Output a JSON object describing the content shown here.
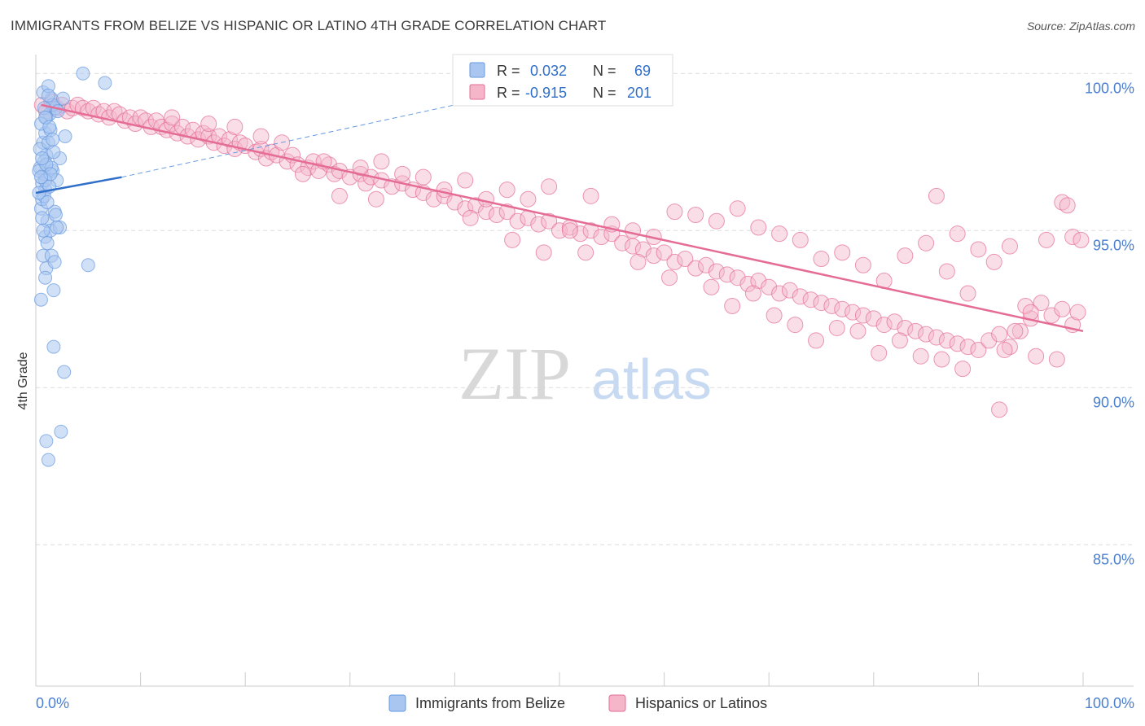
{
  "title": "IMMIGRANTS FROM BELIZE VS HISPANIC OR LATINO 4TH GRADE CORRELATION CHART",
  "source": "Source: ZipAtlas.com",
  "watermark": {
    "zip": "ZIP",
    "atlas": "atlas"
  },
  "chart_data": {
    "type": "scatter",
    "ylabel": "4th Grade",
    "xlim": [
      0,
      100
    ],
    "ylim": [
      80.5,
      100.5
    ],
    "x_tick_labels": [
      {
        "value": 0,
        "label": "0.0%"
      },
      {
        "value": 100,
        "label": "100.0%"
      }
    ],
    "y_tick_labels": [
      {
        "value": 100,
        "label": "100.0%"
      },
      {
        "value": 95,
        "label": "95.0%"
      },
      {
        "value": 90,
        "label": "90.0%"
      },
      {
        "value": 85,
        "label": "85.0%"
      }
    ],
    "grid": true,
    "legend_position": "top-center",
    "series": [
      {
        "name": "Immigrants from Belize",
        "color": "#6699e0",
        "fill": "#a9c6f0",
        "stat_R": "0.032",
        "stat_N": "69",
        "trend": {
          "x0": 0,
          "y0": 96.2,
          "x1": 8.2,
          "y1": 96.7,
          "dashed_to_x": 40,
          "dashed_to_y": 99.0
        },
        "points": [
          [
            0.6,
            96.5
          ],
          [
            0.9,
            96.3
          ],
          [
            0.5,
            95.7
          ],
          [
            1.8,
            95.6
          ],
          [
            0.8,
            96.8
          ],
          [
            1.0,
            97.4
          ],
          [
            0.7,
            97.8
          ],
          [
            0.4,
            97.0
          ],
          [
            0.9,
            98.1
          ],
          [
            1.3,
            98.7
          ],
          [
            1.5,
            99.2
          ],
          [
            0.7,
            99.4
          ],
          [
            1.2,
            99.6
          ],
          [
            1.9,
            98.9
          ],
          [
            0.8,
            97.2
          ],
          [
            0.3,
            96.9
          ],
          [
            0.6,
            96.0
          ],
          [
            1.1,
            95.3
          ],
          [
            0.9,
            94.8
          ],
          [
            1.4,
            95.0
          ],
          [
            2.3,
            95.1
          ],
          [
            0.7,
            94.2
          ],
          [
            1.5,
            94.2
          ],
          [
            1.0,
            93.8
          ],
          [
            1.8,
            94.0
          ],
          [
            0.9,
            93.5
          ],
          [
            1.7,
            93.1
          ],
          [
            0.5,
            92.8
          ],
          [
            5.0,
            93.9
          ],
          [
            1.7,
            91.3
          ],
          [
            2.7,
            90.5
          ],
          [
            1.0,
            88.3
          ],
          [
            2.4,
            88.6
          ],
          [
            1.2,
            87.7
          ],
          [
            4.5,
            100.0
          ],
          [
            6.6,
            99.7
          ],
          [
            1.6,
            99.0
          ],
          [
            2.8,
            98.0
          ],
          [
            2.3,
            97.3
          ],
          [
            1.4,
            98.2
          ],
          [
            1.0,
            98.6
          ],
          [
            0.8,
            96.1
          ],
          [
            1.6,
            96.9
          ],
          [
            0.6,
            95.4
          ],
          [
            2.0,
            96.6
          ],
          [
            0.4,
            97.6
          ],
          [
            1.2,
            97.8
          ],
          [
            1.5,
            97.0
          ],
          [
            0.9,
            96.6
          ],
          [
            1.1,
            95.9
          ],
          [
            0.3,
            96.2
          ],
          [
            1.7,
            97.5
          ],
          [
            0.5,
            98.4
          ],
          [
            2.1,
            98.8
          ],
          [
            1.3,
            96.4
          ],
          [
            0.7,
            95.0
          ],
          [
            1.9,
            95.5
          ],
          [
            1.0,
            97.1
          ],
          [
            0.6,
            97.3
          ],
          [
            1.4,
            96.8
          ],
          [
            2.6,
            99.2
          ],
          [
            0.8,
            98.9
          ],
          [
            1.2,
            99.3
          ],
          [
            0.5,
            96.7
          ],
          [
            1.6,
            97.9
          ],
          [
            0.9,
            98.6
          ],
          [
            1.1,
            94.6
          ],
          [
            2.0,
            95.1
          ],
          [
            1.3,
            98.3
          ]
        ]
      },
      {
        "name": "Hispanics or Latinos",
        "color": "#e46c96",
        "fill": "#f5b6c9",
        "stat_R": "-0.915",
        "stat_N": "201",
        "trend": {
          "x0": 0.5,
          "y0": 99.0,
          "x1": 100,
          "y1": 91.8
        },
        "points": [
          [
            0.6,
            99.0
          ],
          [
            1.0,
            98.8
          ],
          [
            1.5,
            99.1
          ],
          [
            2.0,
            98.9
          ],
          [
            2.5,
            99.0
          ],
          [
            3.0,
            98.8
          ],
          [
            3.5,
            98.9
          ],
          [
            4.0,
            99.0
          ],
          [
            4.5,
            98.9
          ],
          [
            5.0,
            98.8
          ],
          [
            5.5,
            98.9
          ],
          [
            6.0,
            98.7
          ],
          [
            6.5,
            98.8
          ],
          [
            7.0,
            98.6
          ],
          [
            7.5,
            98.8
          ],
          [
            8.0,
            98.7
          ],
          [
            8.5,
            98.5
          ],
          [
            9.0,
            98.6
          ],
          [
            9.5,
            98.4
          ],
          [
            10.0,
            98.6
          ],
          [
            10.5,
            98.5
          ],
          [
            11.0,
            98.3
          ],
          [
            11.5,
            98.5
          ],
          [
            12.0,
            98.3
          ],
          [
            12.5,
            98.2
          ],
          [
            13.0,
            98.4
          ],
          [
            13.5,
            98.1
          ],
          [
            14.0,
            98.3
          ],
          [
            14.5,
            98.0
          ],
          [
            15.0,
            98.2
          ],
          [
            15.5,
            97.9
          ],
          [
            16.0,
            98.1
          ],
          [
            16.5,
            98.0
          ],
          [
            17.0,
            97.8
          ],
          [
            17.5,
            98.0
          ],
          [
            18.0,
            97.7
          ],
          [
            18.5,
            97.9
          ],
          [
            19.0,
            97.6
          ],
          [
            19.5,
            97.8
          ],
          [
            20.0,
            97.7
          ],
          [
            21.0,
            97.5
          ],
          [
            21.5,
            97.6
          ],
          [
            22.0,
            97.3
          ],
          [
            22.5,
            97.5
          ],
          [
            23.0,
            97.4
          ],
          [
            24.0,
            97.2
          ],
          [
            24.5,
            97.4
          ],
          [
            25.0,
            97.1
          ],
          [
            26.0,
            97.0
          ],
          [
            26.5,
            97.2
          ],
          [
            27.0,
            96.9
          ],
          [
            28.0,
            97.1
          ],
          [
            28.5,
            96.8
          ],
          [
            29.0,
            96.9
          ],
          [
            30.0,
            96.7
          ],
          [
            31.0,
            96.8
          ],
          [
            31.5,
            96.5
          ],
          [
            32.0,
            96.7
          ],
          [
            33.0,
            96.6
          ],
          [
            34.0,
            96.4
          ],
          [
            35.0,
            96.5
          ],
          [
            36.0,
            96.3
          ],
          [
            37.0,
            96.2
          ],
          [
            38.0,
            96.0
          ],
          [
            39.0,
            96.1
          ],
          [
            40.0,
            95.9
          ],
          [
            41.0,
            95.7
          ],
          [
            42.0,
            95.8
          ],
          [
            43.0,
            95.6
          ],
          [
            44.0,
            95.5
          ],
          [
            45.0,
            95.6
          ],
          [
            46.0,
            95.3
          ],
          [
            47.0,
            95.4
          ],
          [
            48.0,
            95.2
          ],
          [
            49.0,
            95.3
          ],
          [
            50.0,
            95.0
          ],
          [
            51.0,
            95.1
          ],
          [
            52.0,
            94.9
          ],
          [
            53.0,
            95.0
          ],
          [
            54.0,
            94.8
          ],
          [
            55.0,
            94.9
          ],
          [
            56.0,
            94.6
          ],
          [
            57.0,
            94.5
          ],
          [
            58.0,
            94.4
          ],
          [
            59.0,
            94.2
          ],
          [
            60.0,
            94.3
          ],
          [
            61.0,
            94.0
          ],
          [
            62.0,
            94.1
          ],
          [
            63.0,
            93.8
          ],
          [
            64.0,
            93.9
          ],
          [
            65.0,
            93.7
          ],
          [
            66.0,
            93.6
          ],
          [
            67.0,
            93.5
          ],
          [
            68.0,
            93.3
          ],
          [
            69.0,
            93.4
          ],
          [
            70.0,
            93.2
          ],
          [
            71.0,
            93.0
          ],
          [
            72.0,
            93.1
          ],
          [
            73.0,
            92.9
          ],
          [
            74.0,
            92.8
          ],
          [
            75.0,
            92.7
          ],
          [
            76.0,
            92.6
          ],
          [
            77.0,
            92.5
          ],
          [
            78.0,
            92.4
          ],
          [
            79.0,
            92.3
          ],
          [
            80.0,
            92.2
          ],
          [
            81.0,
            92.0
          ],
          [
            82.0,
            92.1
          ],
          [
            83.0,
            91.9
          ],
          [
            84.0,
            91.8
          ],
          [
            85.0,
            91.7
          ],
          [
            86.0,
            91.6
          ],
          [
            87.0,
            91.5
          ],
          [
            88.0,
            91.4
          ],
          [
            89.0,
            91.3
          ],
          [
            90.0,
            91.2
          ],
          [
            91.0,
            91.5
          ],
          [
            92.0,
            91.7
          ],
          [
            93.0,
            91.3
          ],
          [
            94.0,
            91.8
          ],
          [
            95.0,
            92.2
          ],
          [
            96.0,
            92.7
          ],
          [
            97.0,
            92.3
          ],
          [
            98.0,
            92.5
          ],
          [
            99.0,
            92.0
          ],
          [
            99.5,
            92.4
          ],
          [
            29.0,
            96.1
          ],
          [
            32.5,
            96.0
          ],
          [
            41.5,
            95.4
          ],
          [
            45.5,
            94.7
          ],
          [
            48.5,
            94.3
          ],
          [
            52.5,
            94.3
          ],
          [
            57.5,
            94.0
          ],
          [
            60.5,
            93.5
          ],
          [
            64.5,
            93.2
          ],
          [
            66.5,
            92.6
          ],
          [
            68.5,
            93.0
          ],
          [
            70.5,
            92.3
          ],
          [
            72.5,
            92.0
          ],
          [
            74.5,
            91.5
          ],
          [
            76.5,
            91.9
          ],
          [
            78.5,
            91.8
          ],
          [
            80.5,
            91.1
          ],
          [
            82.5,
            91.5
          ],
          [
            84.5,
            91.0
          ],
          [
            86.5,
            90.9
          ],
          [
            88.5,
            90.6
          ],
          [
            92.5,
            91.2
          ],
          [
            95.5,
            91.0
          ],
          [
            97.5,
            90.9
          ],
          [
            98.0,
            95.9
          ],
          [
            99.0,
            94.8
          ],
          [
            98.5,
            95.8
          ],
          [
            96.5,
            94.7
          ],
          [
            86.0,
            96.1
          ],
          [
            88.0,
            94.9
          ],
          [
            90.0,
            94.4
          ],
          [
            91.5,
            94.0
          ],
          [
            93.0,
            94.5
          ],
          [
            94.5,
            92.6
          ],
          [
            89.0,
            93.0
          ],
          [
            87.0,
            93.7
          ],
          [
            85.0,
            94.6
          ],
          [
            83.0,
            94.2
          ],
          [
            81.0,
            93.4
          ],
          [
            79.0,
            93.9
          ],
          [
            77.0,
            94.3
          ],
          [
            75.0,
            94.1
          ],
          [
            73.0,
            94.7
          ],
          [
            71.0,
            94.9
          ],
          [
            69.0,
            95.1
          ],
          [
            67.0,
            95.7
          ],
          [
            65.0,
            95.3
          ],
          [
            63.0,
            95.5
          ],
          [
            61.0,
            95.6
          ],
          [
            59.0,
            94.8
          ],
          [
            57.0,
            95.0
          ],
          [
            55.0,
            95.2
          ],
          [
            53.0,
            96.1
          ],
          [
            51.0,
            95.0
          ],
          [
            49.0,
            96.4
          ],
          [
            47.0,
            96.0
          ],
          [
            45.0,
            96.3
          ],
          [
            43.0,
            96.0
          ],
          [
            41.0,
            96.6
          ],
          [
            39.0,
            96.3
          ],
          [
            37.0,
            96.7
          ],
          [
            35.0,
            96.8
          ],
          [
            33.0,
            97.2
          ],
          [
            31.0,
            97.0
          ],
          [
            27.5,
            97.2
          ],
          [
            25.5,
            96.8
          ],
          [
            23.5,
            97.8
          ],
          [
            21.5,
            98.0
          ],
          [
            19.0,
            98.3
          ],
          [
            16.5,
            98.4
          ],
          [
            13.0,
            98.6
          ],
          [
            99.8,
            94.7
          ],
          [
            95.0,
            92.4
          ],
          [
            93.5,
            91.8
          ],
          [
            92.0,
            89.3
          ]
        ]
      }
    ]
  }
}
